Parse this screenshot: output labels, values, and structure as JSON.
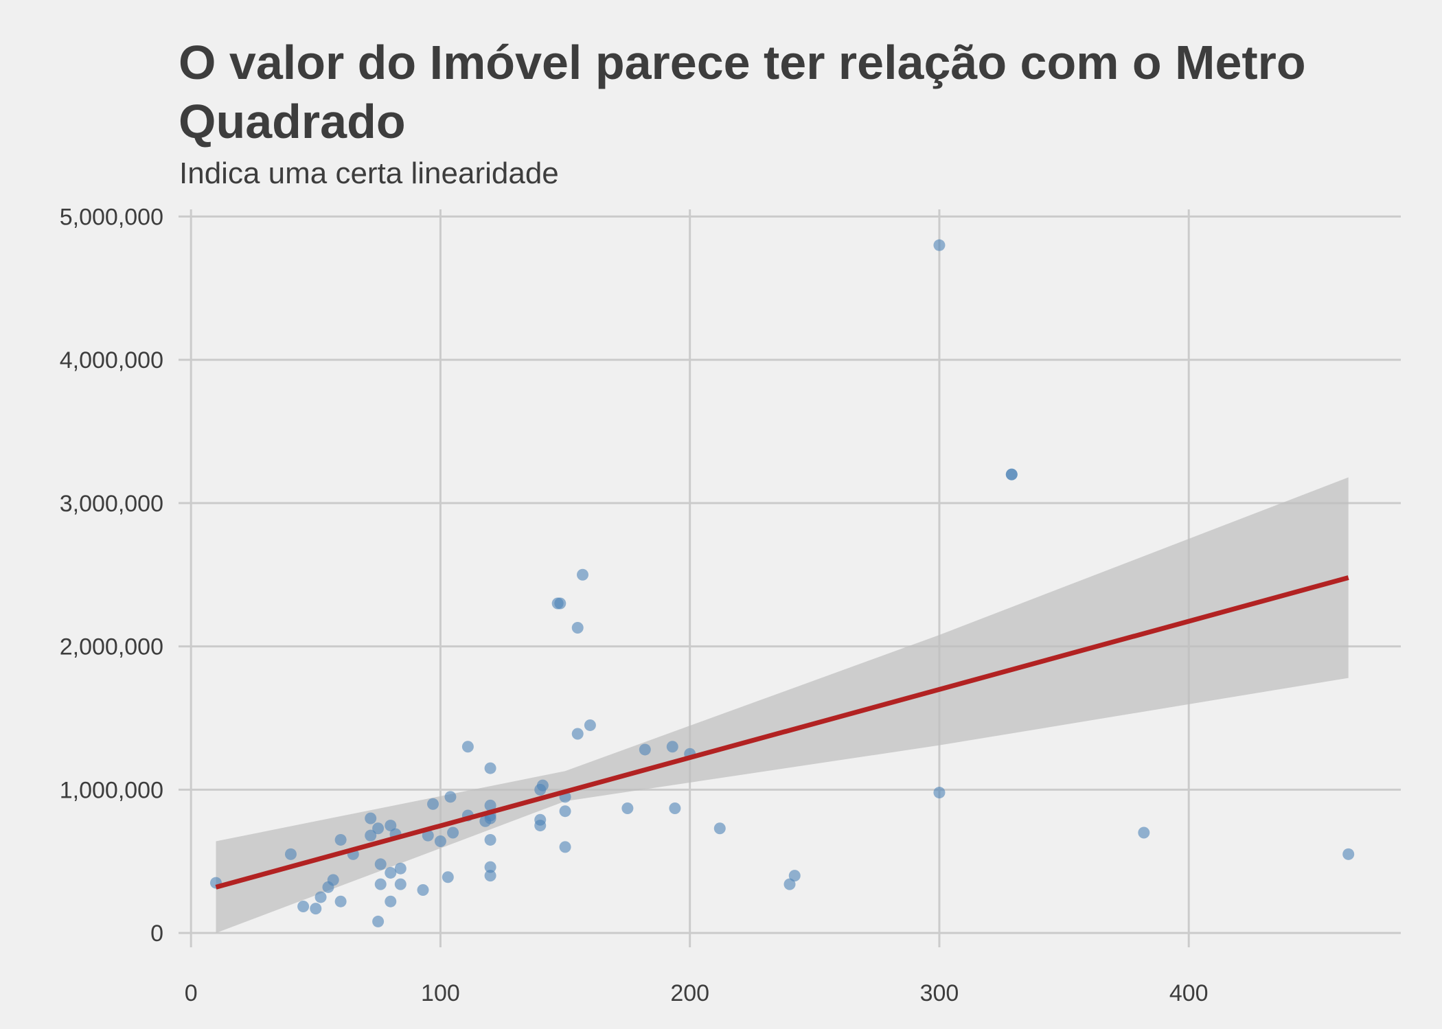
{
  "chart_data": {
    "type": "scatter",
    "title": "O valor do Imóvel parece ter relação com o Metro Quadrado",
    "subtitle": "Indica uma certa linearidade",
    "xlabel": "",
    "ylabel": "",
    "xlim": [
      -5,
      485
    ],
    "ylim": [
      -100000,
      5050000
    ],
    "x_ticks": [
      0,
      100,
      200,
      300,
      400
    ],
    "y_ticks": [
      0,
      1000000,
      2000000,
      3000000,
      4000000,
      5000000
    ],
    "x_tick_labels": [
      "0",
      "100",
      "200",
      "300",
      "400"
    ],
    "y_tick_labels": [
      "0",
      "1,000,000",
      "2,000,000",
      "3,000,000",
      "4,000,000",
      "5,000,000"
    ],
    "grid": true,
    "legend": "none",
    "colors": {
      "points": "#4f84b8",
      "regression_line": "#b22222",
      "confidence_band": "#bebebe",
      "grid": "#cbcbcb",
      "background": "#f0f0f0"
    },
    "points": [
      [
        10,
        350000
      ],
      [
        40,
        550000
      ],
      [
        45,
        185000
      ],
      [
        50,
        170000
      ],
      [
        52,
        250000
      ],
      [
        55,
        320000
      ],
      [
        57,
        370000
      ],
      [
        60,
        650000
      ],
      [
        60,
        220000
      ],
      [
        65,
        550000
      ],
      [
        72,
        800000
      ],
      [
        72,
        680000
      ],
      [
        75,
        730000
      ],
      [
        75,
        80000
      ],
      [
        76,
        480000
      ],
      [
        76,
        340000
      ],
      [
        80,
        750000
      ],
      [
        80,
        420000
      ],
      [
        80,
        220000
      ],
      [
        82,
        690000
      ],
      [
        84,
        450000
      ],
      [
        84,
        340000
      ],
      [
        93,
        300000
      ],
      [
        95,
        680000
      ],
      [
        97,
        900000
      ],
      [
        100,
        640000
      ],
      [
        103,
        390000
      ],
      [
        104,
        950000
      ],
      [
        105,
        700000
      ],
      [
        111,
        1300000
      ],
      [
        111,
        820000
      ],
      [
        118,
        780000
      ],
      [
        120,
        1150000
      ],
      [
        120,
        890000
      ],
      [
        120,
        820000
      ],
      [
        120,
        800000
      ],
      [
        120,
        650000
      ],
      [
        120,
        460000
      ],
      [
        120,
        400000
      ],
      [
        140,
        1000000
      ],
      [
        140,
        790000
      ],
      [
        140,
        750000
      ],
      [
        141,
        1030000
      ],
      [
        147,
        2300000
      ],
      [
        148,
        2300000
      ],
      [
        150,
        950000
      ],
      [
        150,
        850000
      ],
      [
        150,
        600000
      ],
      [
        155,
        2130000
      ],
      [
        155,
        1390000
      ],
      [
        157,
        2500000
      ],
      [
        160,
        1450000
      ],
      [
        175,
        870000
      ],
      [
        182,
        1280000
      ],
      [
        193,
        1300000
      ],
      [
        194,
        870000
      ],
      [
        200,
        1250000
      ],
      [
        212,
        730000
      ],
      [
        240,
        340000
      ],
      [
        242,
        400000
      ],
      [
        300,
        4800000
      ],
      [
        300,
        980000
      ],
      [
        329,
        3200000
      ],
      [
        329,
        3200000
      ],
      [
        382,
        700000
      ],
      [
        464,
        550000
      ]
    ],
    "regression_line": {
      "x": [
        10,
        464
      ],
      "y": [
        320000,
        2480000
      ]
    },
    "confidence_band": {
      "x": [
        10,
        150,
        300,
        464
      ],
      "upper": [
        640000,
        1130000,
        2080000,
        3180000
      ],
      "lower": [
        0,
        920000,
        1310000,
        1780000
      ]
    }
  }
}
